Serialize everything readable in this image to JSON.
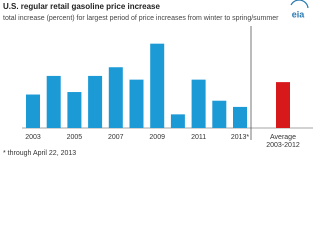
{
  "chart_data": {
    "type": "bar",
    "title": "U.S. regular retail gasoline price increase",
    "subtitle": "total increase (percent) for largest period of price increases from winter to spring/summer",
    "footnote": "* through April 22, 2013",
    "logo": "eia",
    "categories": [
      "2003",
      null,
      "2005",
      null,
      "2007",
      null,
      "2009",
      null,
      "2011",
      null,
      "2013*"
    ],
    "values": [
      27,
      42,
      29,
      42,
      49,
      39,
      68,
      11,
      39,
      22,
      17
    ],
    "color": "#1c9ad6",
    "average": {
      "label": [
        "Average",
        "2003-2012"
      ],
      "value": 37,
      "color": "#d7191c"
    },
    "ylim": [
      0,
      75
    ]
  }
}
